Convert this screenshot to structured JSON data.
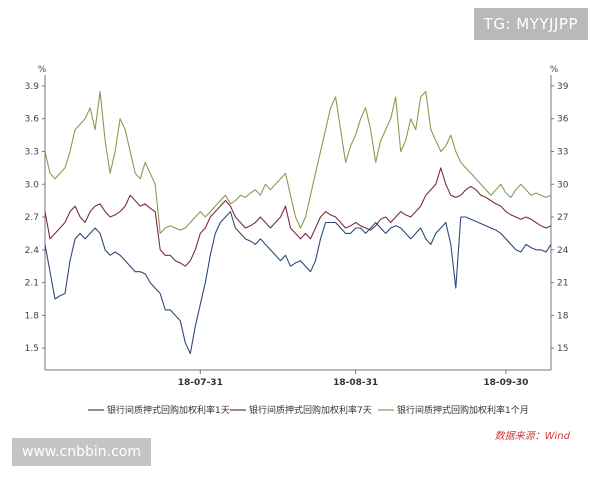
{
  "watermark_top": "TG: MYYJJPP",
  "watermark_bottom": "www.cnbbin.com",
  "chart_data": {
    "type": "line",
    "y_unit_label": "%",
    "ylim": [
      1.3,
      4.0
    ],
    "y_ticks": [
      1.5,
      1.8,
      2.1,
      2.4,
      2.7,
      3.0,
      3.3,
      3.6,
      3.9
    ],
    "y_tick_labels_left": [
      "1.5",
      "1.8",
      "2.1",
      "2.4",
      "2.7",
      "3.0",
      "3.3",
      "3.6",
      "3.9"
    ],
    "y_tick_labels_right": [
      "15",
      "18",
      "21",
      "24",
      "27",
      "30",
      "33",
      "36",
      "39"
    ],
    "x_tick_labels": [
      "18-07-31",
      "18-08-31",
      "18-09-30"
    ],
    "x_tick_positions": [
      31,
      62,
      92
    ],
    "x_range": [
      0,
      101
    ],
    "grid": false,
    "legend_position": "bottom",
    "source": "数据来源：Wind",
    "series": [
      {
        "name": "银行间质押式回购加权利率1天",
        "color": "#2e4a78",
        "x": [
          0,
          1,
          2,
          3,
          4,
          5,
          6,
          7,
          8,
          9,
          10,
          11,
          12,
          13,
          14,
          15,
          16,
          17,
          18,
          19,
          20,
          21,
          22,
          23,
          24,
          25,
          26,
          27,
          28,
          29,
          30,
          31,
          32,
          33,
          34,
          35,
          36,
          37,
          38,
          39,
          40,
          41,
          42,
          43,
          44,
          45,
          46,
          47,
          48,
          49,
          50,
          51,
          52,
          53,
          54,
          55,
          56,
          57,
          58,
          59,
          60,
          61,
          62,
          63,
          64,
          65,
          66,
          67,
          68,
          69,
          70,
          71,
          72,
          73,
          74,
          75,
          76,
          77,
          78,
          79,
          80,
          81,
          82,
          83,
          84,
          85,
          86,
          87,
          88,
          89,
          90,
          91,
          92,
          93,
          94,
          95,
          96,
          97,
          98,
          99,
          100,
          101
        ],
        "values": [
          2.45,
          2.2,
          1.95,
          1.98,
          2.0,
          2.3,
          2.5,
          2.55,
          2.5,
          2.55,
          2.6,
          2.55,
          2.4,
          2.35,
          2.38,
          2.35,
          2.3,
          2.25,
          2.2,
          2.2,
          2.18,
          2.1,
          2.05,
          2.0,
          1.85,
          1.85,
          1.8,
          1.75,
          1.55,
          1.45,
          1.7,
          1.9,
          2.1,
          2.35,
          2.55,
          2.65,
          2.7,
          2.75,
          2.6,
          2.55,
          2.5,
          2.48,
          2.45,
          2.5,
          2.45,
          2.4,
          2.35,
          2.3,
          2.35,
          2.25,
          2.28,
          2.3,
          2.25,
          2.2,
          2.3,
          2.5,
          2.65,
          2.65,
          2.65,
          2.6,
          2.55,
          2.55,
          2.6,
          2.6,
          2.55,
          2.6,
          2.65,
          2.6,
          2.55,
          2.6,
          2.62,
          2.6,
          2.55,
          2.5,
          2.55,
          2.6,
          2.5,
          2.45,
          2.55,
          2.6,
          2.65,
          2.45,
          2.05,
          2.7,
          2.7,
          2.68,
          2.66,
          2.64,
          2.62,
          2.6,
          2.58,
          2.55,
          2.5,
          2.45,
          2.4,
          2.38,
          2.45,
          2.42,
          2.4,
          2.4,
          2.38,
          2.45
        ]
      },
      {
        "name": "银行间质押式回购加权利率7天",
        "color": "#7a2c44",
        "x": [
          0,
          1,
          2,
          3,
          4,
          5,
          6,
          7,
          8,
          9,
          10,
          11,
          12,
          13,
          14,
          15,
          16,
          17,
          18,
          19,
          20,
          21,
          22,
          23,
          24,
          25,
          26,
          27,
          28,
          29,
          30,
          31,
          32,
          33,
          34,
          35,
          36,
          37,
          38,
          39,
          40,
          41,
          42,
          43,
          44,
          45,
          46,
          47,
          48,
          49,
          50,
          51,
          52,
          53,
          54,
          55,
          56,
          57,
          58,
          59,
          60,
          61,
          62,
          63,
          64,
          65,
          66,
          67,
          68,
          69,
          70,
          71,
          72,
          73,
          74,
          75,
          76,
          77,
          78,
          79,
          80,
          81,
          82,
          83,
          84,
          85,
          86,
          87,
          88,
          89,
          90,
          91,
          92,
          93,
          94,
          95,
          96,
          97,
          98,
          99,
          100,
          101
        ],
        "values": [
          2.75,
          2.5,
          2.55,
          2.6,
          2.65,
          2.75,
          2.8,
          2.7,
          2.65,
          2.75,
          2.8,
          2.82,
          2.75,
          2.7,
          2.72,
          2.75,
          2.8,
          2.9,
          2.85,
          2.8,
          2.82,
          2.78,
          2.75,
          2.4,
          2.35,
          2.35,
          2.3,
          2.28,
          2.25,
          2.3,
          2.4,
          2.55,
          2.6,
          2.7,
          2.75,
          2.8,
          2.85,
          2.8,
          2.7,
          2.65,
          2.6,
          2.62,
          2.65,
          2.7,
          2.65,
          2.6,
          2.65,
          2.7,
          2.8,
          2.6,
          2.55,
          2.5,
          2.55,
          2.5,
          2.6,
          2.7,
          2.75,
          2.72,
          2.7,
          2.65,
          2.6,
          2.62,
          2.65,
          2.62,
          2.6,
          2.58,
          2.62,
          2.68,
          2.7,
          2.65,
          2.7,
          2.75,
          2.72,
          2.7,
          2.75,
          2.8,
          2.9,
          2.95,
          3.0,
          3.15,
          3.0,
          2.9,
          2.88,
          2.9,
          2.95,
          2.98,
          2.95,
          2.9,
          2.88,
          2.85,
          2.82,
          2.8,
          2.75,
          2.72,
          2.7,
          2.68,
          2.7,
          2.68,
          2.65,
          2.62,
          2.6,
          2.62
        ]
      },
      {
        "name": "银行间质押式回购加权利率1个月",
        "color": "#8e9a52",
        "x": [
          0,
          1,
          2,
          3,
          4,
          5,
          6,
          7,
          8,
          9,
          10,
          11,
          12,
          13,
          14,
          15,
          16,
          17,
          18,
          19,
          20,
          21,
          22,
          23,
          24,
          25,
          26,
          27,
          28,
          29,
          30,
          31,
          32,
          33,
          34,
          35,
          36,
          37,
          38,
          39,
          40,
          41,
          42,
          43,
          44,
          45,
          46,
          47,
          48,
          49,
          50,
          51,
          52,
          53,
          54,
          55,
          56,
          57,
          58,
          59,
          60,
          61,
          62,
          63,
          64,
          65,
          66,
          67,
          68,
          69,
          70,
          71,
          72,
          73,
          74,
          75,
          76,
          77,
          78,
          79,
          80,
          81,
          82,
          83,
          84,
          85,
          86,
          87,
          88,
          89,
          90,
          91,
          92,
          93,
          94,
          95,
          96,
          97,
          98,
          99,
          100,
          101
        ],
        "values": [
          3.3,
          3.1,
          3.05,
          3.1,
          3.15,
          3.3,
          3.5,
          3.55,
          3.6,
          3.7,
          3.5,
          3.85,
          3.4,
          3.1,
          3.3,
          3.6,
          3.5,
          3.3,
          3.1,
          3.05,
          3.2,
          3.1,
          3.0,
          2.55,
          2.6,
          2.62,
          2.6,
          2.58,
          2.6,
          2.65,
          2.7,
          2.75,
          2.7,
          2.75,
          2.8,
          2.85,
          2.9,
          2.82,
          2.85,
          2.9,
          2.88,
          2.92,
          2.95,
          2.9,
          3.0,
          2.95,
          3.0,
          3.05,
          3.1,
          2.9,
          2.7,
          2.6,
          2.7,
          2.9,
          3.1,
          3.3,
          3.5,
          3.7,
          3.8,
          3.5,
          3.2,
          3.35,
          3.45,
          3.6,
          3.7,
          3.5,
          3.2,
          3.4,
          3.5,
          3.6,
          3.8,
          3.3,
          3.4,
          3.6,
          3.5,
          3.8,
          3.85,
          3.5,
          3.4,
          3.3,
          3.35,
          3.45,
          3.3,
          3.2,
          3.15,
          3.1,
          3.05,
          3.0,
          2.95,
          2.9,
          2.95,
          3.0,
          2.92,
          2.88,
          2.95,
          3.0,
          2.95,
          2.9,
          2.92,
          2.9,
          2.88,
          2.9
        ]
      }
    ]
  }
}
